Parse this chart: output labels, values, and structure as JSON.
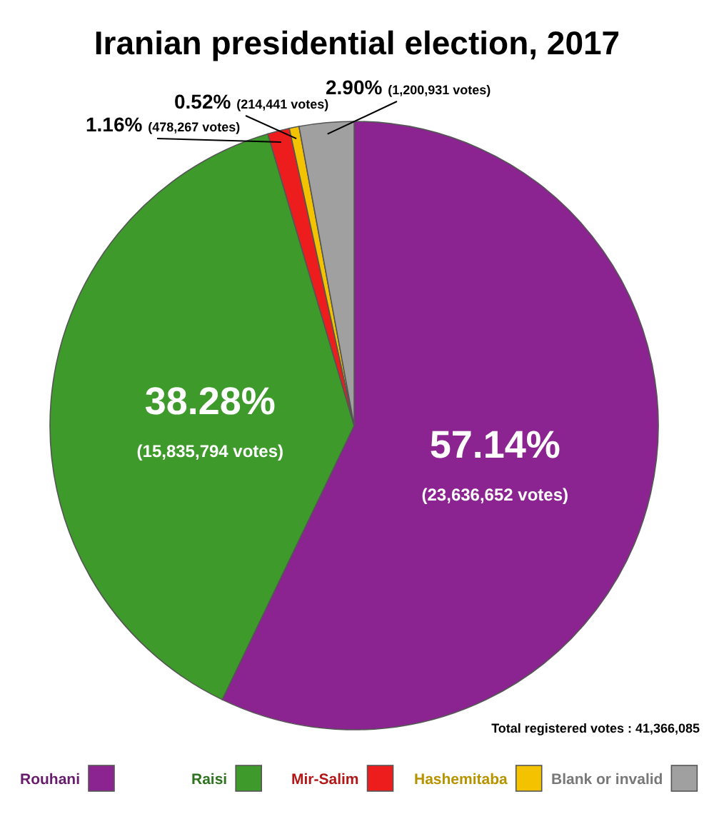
{
  "chart_data": {
    "type": "pie",
    "title": "Iranian presidential election, 2017",
    "categories": [
      "Rouhani",
      "Raisi",
      "Mir-Salim",
      "Hashemitaba",
      "Blank or invalid"
    ],
    "values": [
      57.14,
      38.28,
      1.16,
      0.52,
      2.9
    ],
    "colors": [
      "#8b2490",
      "#3e9a2b",
      "#ee1d1d",
      "#f3c300",
      "#a0a0a0"
    ],
    "value_labels": [
      "57.14%",
      "38.28%",
      "1.16%",
      "0.52%",
      "2.90%"
    ],
    "annotations": [
      {
        "text": "(23,636,652 votes)",
        "x": "Rouhani"
      },
      {
        "text": "(15,835,794 votes)",
        "x": "Raisi"
      },
      {
        "text": "(478,267 votes)",
        "x": "Mir-Salim"
      },
      {
        "text": "(214,441 votes)",
        "x": "Hashemitaba"
      },
      {
        "text": "(1,200,931 votes)",
        "x": "Blank or invalid"
      },
      "Total registered votes : 41,366,085"
    ],
    "legend": "bottom"
  }
}
